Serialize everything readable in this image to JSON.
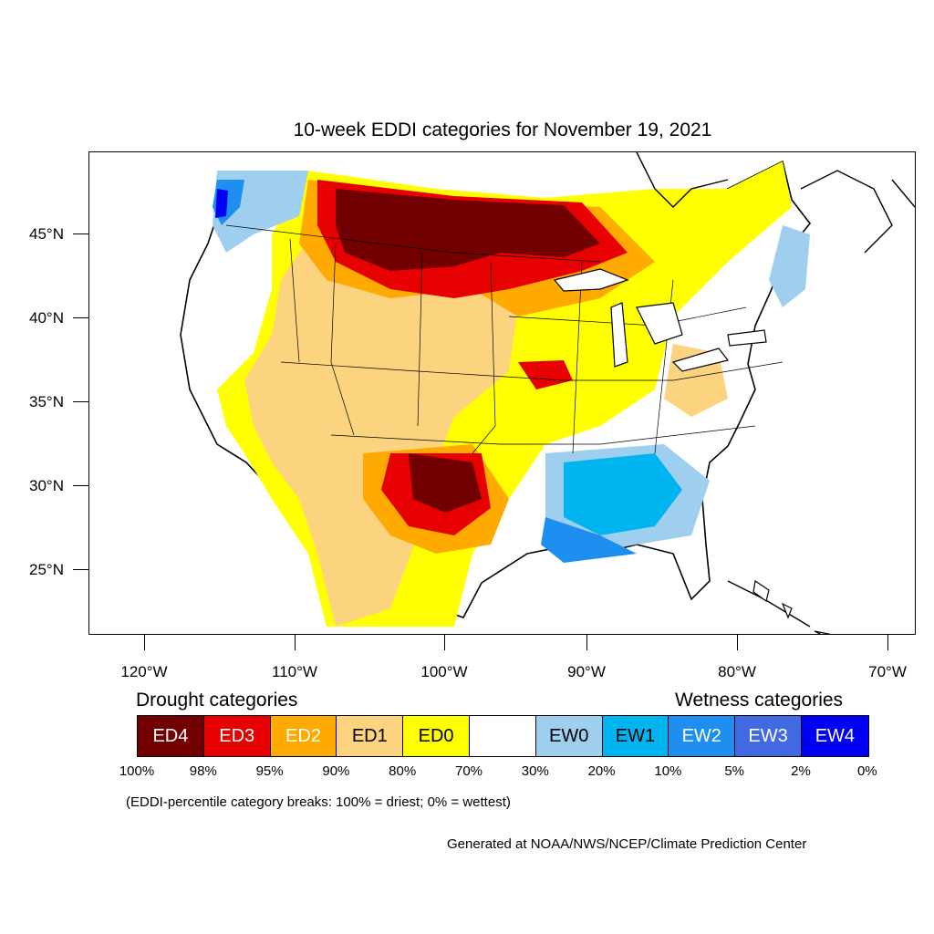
{
  "title": "10-week EDDI categories for November 19, 2021",
  "axes": {
    "lat_labels": [
      "45°N",
      "40°N",
      "35°N",
      "30°N",
      "25°N"
    ],
    "lon_labels": [
      "120°W",
      "110°W",
      "100°W",
      "90°W",
      "80°W",
      "70°W"
    ]
  },
  "legend": {
    "drought_heading": "Drought categories",
    "wetness_heading": "Wetness categories",
    "categories": [
      {
        "label": "ED4",
        "color": "#730000",
        "text_color": "#ffffff"
      },
      {
        "label": "ED3",
        "color": "#e60000",
        "text_color": "#ffffff"
      },
      {
        "label": "ED2",
        "color": "#ffaa00",
        "text_color": "#ffffff"
      },
      {
        "label": "ED1",
        "color": "#fcd37f",
        "text_color": "#000000"
      },
      {
        "label": "ED0",
        "color": "#ffff00",
        "text_color": "#000000"
      },
      {
        "label": "",
        "color": "#ffffff",
        "text_color": "#000000"
      },
      {
        "label": "EW0",
        "color": "#9ecfee",
        "text_color": "#000000"
      },
      {
        "label": "EW1",
        "color": "#00b4f0",
        "text_color": "#000000"
      },
      {
        "label": "EW2",
        "color": "#1e8ff0",
        "text_color": "#ffffff"
      },
      {
        "label": "EW3",
        "color": "#4169e1",
        "text_color": "#ffffff"
      },
      {
        "label": "EW4",
        "color": "#0000f5",
        "text_color": "#ffffff"
      }
    ],
    "breaks": [
      "100%",
      "98%",
      "95%",
      "90%",
      "80%",
      "70%",
      "30%",
      "20%",
      "10%",
      "5%",
      "2%",
      "0%"
    ]
  },
  "note": "(EDDI-percentile category breaks: 100% = driest; 0% = wettest)",
  "credit": "Generated at NOAA/NWS/NCEP/Climate Prediction Center"
}
